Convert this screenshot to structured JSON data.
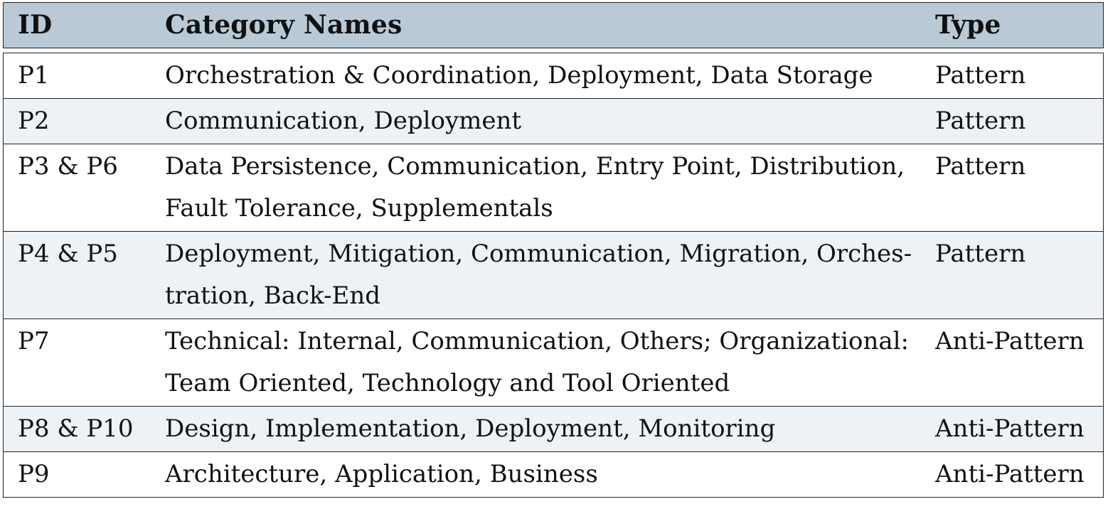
{
  "table": {
    "headers": {
      "id": "ID",
      "category": "Category Names",
      "type": "Type"
    },
    "rows": [
      {
        "id": "P1",
        "category": [
          "Orchestration & Coordination, Deployment, Data Storage"
        ],
        "type": "Pattern"
      },
      {
        "id": "P2",
        "category": [
          "Communication, Deployment"
        ],
        "type": "Pattern"
      },
      {
        "id": "P3 & P6",
        "category": [
          "Data Persistence, Communication, Entry Point, Distribution,",
          "Fault Tolerance, Supplementals"
        ],
        "type": "Pattern"
      },
      {
        "id": "P4 & P5",
        "category": [
          "Deployment, Mitigation, Communication, Migration, Orches-",
          "tration, Back-End"
        ],
        "type": "Pattern"
      },
      {
        "id": "P7",
        "category": [
          "Technical: Internal, Communication, Others; Organizational:",
          "Team Oriented, Technology and Tool Oriented"
        ],
        "type": "Anti-Pattern"
      },
      {
        "id": "P8 & P10",
        "category": [
          "Design, Implementation, Deployment, Monitoring"
        ],
        "type": "Anti-Pattern"
      },
      {
        "id": "P9",
        "category": [
          "Architecture, Application, Business"
        ],
        "type": "Anti-Pattern"
      }
    ]
  },
  "colors": {
    "header_bg": "#b9cad6",
    "alt_row_bg": "#edf2f6",
    "border": "#222222"
  }
}
